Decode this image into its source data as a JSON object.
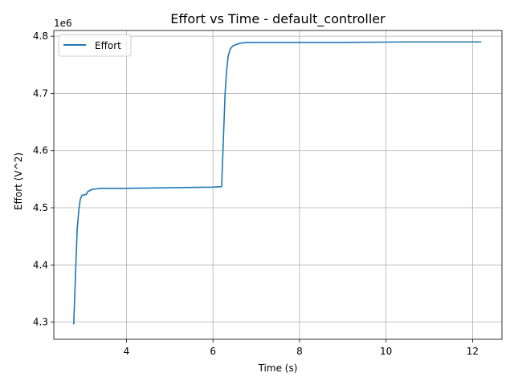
{
  "chart_data": {
    "type": "line",
    "title": "Effort vs Time - default_controller",
    "xlabel": "Time (s)",
    "ylabel": "Effort (V^2)",
    "y_offset_label": "1e6",
    "xlim": [
      2.32,
      12.68
    ],
    "ylim": [
      4.27,
      4.81
    ],
    "x_ticks": [
      4,
      6,
      8,
      10,
      12
    ],
    "x_tick_labels": [
      "4",
      "6",
      "8",
      "10",
      "12"
    ],
    "y_ticks": [
      4.3,
      4.4,
      4.5,
      4.6,
      4.7,
      4.8
    ],
    "y_tick_labels": [
      "4.3",
      "4.4",
      "4.5",
      "4.6",
      "4.7",
      "4.8"
    ],
    "grid": true,
    "legend": {
      "position": "top-left",
      "entries": [
        "Effort"
      ]
    },
    "series": [
      {
        "name": "Effort",
        "color": "#1f77b4",
        "x": [
          2.78,
          2.82,
          2.86,
          2.9,
          2.93,
          2.97,
          3.02,
          3.08,
          3.1,
          3.15,
          3.2,
          3.3,
          3.4,
          3.6,
          4.0,
          5.0,
          6.0,
          6.2,
          6.24,
          6.28,
          6.31,
          6.35,
          6.4,
          6.46,
          6.55,
          6.65,
          6.8,
          7.5,
          9.0,
          10.5,
          12.2
        ],
        "y": [
          4.296,
          4.38,
          4.462,
          4.497,
          4.514,
          4.522,
          4.522,
          4.524,
          4.528,
          4.53,
          4.532,
          4.533,
          4.534,
          4.534,
          4.534,
          4.535,
          4.536,
          4.537,
          4.62,
          4.7,
          4.735,
          4.765,
          4.778,
          4.783,
          4.786,
          4.788,
          4.789,
          4.789,
          4.789,
          4.79,
          4.79
        ]
      }
    ]
  }
}
